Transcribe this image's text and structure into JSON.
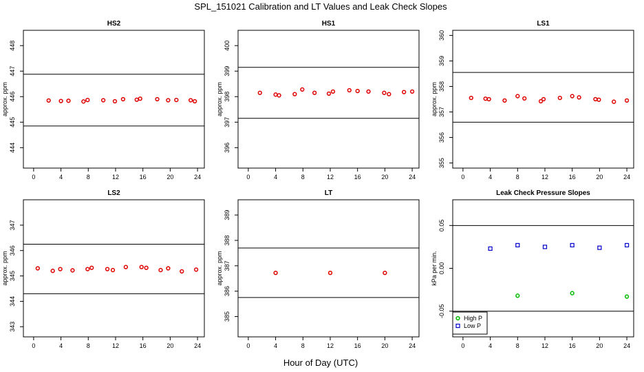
{
  "figure": {
    "title": "SPL_151021  Calibration and LT Values and Leak Check Slopes",
    "xlabel": "Hour of Day (UTC)"
  },
  "chart_data": [
    {
      "type": "scatter",
      "title": "HS2",
      "ylabel": "approx. ppm",
      "xlim": [
        -1.5,
        25
      ],
      "ylim": [
        443.2,
        448.6
      ],
      "x_ticks": [
        0,
        4,
        8,
        12,
        16,
        20,
        24
      ],
      "y_ticks": [
        444,
        445,
        446,
        447,
        448
      ],
      "hlines": [
        446.88,
        444.85
      ],
      "series": [
        {
          "marker": "circle",
          "color": "#e00000",
          "x": [
            2.2,
            4.0,
            5.1,
            7.3,
            7.9,
            10.2,
            11.9,
            13.1,
            15.1,
            15.6,
            18.1,
            19.7,
            20.9,
            23.0,
            23.6
          ],
          "y": [
            445.85,
            445.83,
            445.84,
            445.81,
            445.87,
            445.86,
            445.82,
            445.9,
            445.88,
            445.92,
            445.9,
            445.86,
            445.87,
            445.86,
            445.82
          ]
        }
      ]
    },
    {
      "type": "scatter",
      "title": "HS1",
      "ylabel": "approx. ppm",
      "xlim": [
        -1.5,
        25
      ],
      "ylim": [
        395.2,
        400.6
      ],
      "x_ticks": [
        0,
        4,
        8,
        12,
        16,
        20,
        24
      ],
      "y_ticks": [
        396,
        397,
        398,
        399,
        400
      ],
      "hlines": [
        399.15,
        397.15
      ],
      "series": [
        {
          "marker": "circle",
          "color": "#e00000",
          "x": [
            1.7,
            4.0,
            4.5,
            6.8,
            7.9,
            9.7,
            11.8,
            12.4,
            14.8,
            16.0,
            17.6,
            19.9,
            20.6,
            22.8,
            24.0
          ],
          "y": [
            398.15,
            398.08,
            398.05,
            398.1,
            398.28,
            398.15,
            398.12,
            398.2,
            398.25,
            398.22,
            398.2,
            398.15,
            398.1,
            398.18,
            398.2
          ]
        }
      ]
    },
    {
      "type": "scatter",
      "title": "LS1",
      "ylabel": "approx. ppm",
      "xlim": [
        -1.5,
        25
      ],
      "ylim": [
        354.8,
        360.2
      ],
      "x_ticks": [
        0,
        4,
        8,
        12,
        16,
        20,
        24
      ],
      "y_ticks": [
        355,
        356,
        357,
        358,
        359,
        360
      ],
      "hlines": [
        358.55,
        356.6
      ],
      "series": [
        {
          "marker": "circle",
          "color": "#e00000",
          "x": [
            1.2,
            3.3,
            3.8,
            6.1,
            8.0,
            9.0,
            11.4,
            11.8,
            14.2,
            16.0,
            17.0,
            19.4,
            19.9,
            22.1,
            24.0
          ],
          "y": [
            357.55,
            357.52,
            357.5,
            357.45,
            357.62,
            357.53,
            357.42,
            357.5,
            357.55,
            357.62,
            357.57,
            357.5,
            357.48,
            357.4,
            357.45
          ]
        }
      ]
    },
    {
      "type": "scatter",
      "title": "LS2",
      "ylabel": "approx. ppm",
      "xlim": [
        -1.5,
        25
      ],
      "ylim": [
        342.6,
        348
      ],
      "x_ticks": [
        0,
        4,
        8,
        12,
        16,
        20,
        24
      ],
      "y_ticks": [
        343,
        344,
        345,
        346,
        347
      ],
      "hlines": [
        346.25,
        344.3
      ],
      "series": [
        {
          "marker": "circle",
          "color": "#e00000",
          "x": [
            0.6,
            2.8,
            3.9,
            5.7,
            7.9,
            8.5,
            10.8,
            11.6,
            13.5,
            15.8,
            16.5,
            18.6,
            19.7,
            21.7,
            23.8
          ],
          "y": [
            345.3,
            345.2,
            345.27,
            345.22,
            345.27,
            345.32,
            345.27,
            345.23,
            345.35,
            345.35,
            345.32,
            345.23,
            345.3,
            345.18,
            345.25
          ]
        }
      ]
    },
    {
      "type": "scatter",
      "title": "LT",
      "ylabel": "approx. ppm",
      "xlim": [
        -1.5,
        25
      ],
      "ylim": [
        384.2,
        389.6
      ],
      "x_ticks": [
        0,
        4,
        8,
        12,
        16,
        20,
        24
      ],
      "y_ticks": [
        385,
        386,
        387,
        388,
        389
      ],
      "hlines": [
        387.7,
        385.75
      ],
      "series": [
        {
          "marker": "circle",
          "color": "#e00000",
          "x": [
            4.0,
            12.0,
            20.0
          ],
          "y": [
            386.72,
            386.72,
            386.72
          ]
        }
      ]
    },
    {
      "type": "scatter",
      "title": "Leak Check Pressure Slopes",
      "ylabel": "kPa per min.",
      "xlim": [
        -1.5,
        25
      ],
      "ylim": [
        -0.08,
        0.08
      ],
      "x_ticks": [
        0,
        4,
        8,
        12,
        16,
        20,
        24
      ],
      "y_ticks": [
        -0.05,
        0.0,
        0.05
      ],
      "y_tick_labels": [
        "-0.05",
        "0.00",
        "0.05"
      ],
      "hlines": [
        0.05,
        -0.05
      ],
      "legend": "bottom-left",
      "series": [
        {
          "name": "High P",
          "marker": "circle",
          "color": "#00bb00",
          "x": [
            8,
            16,
            24
          ],
          "y": [
            -0.032,
            -0.029,
            -0.033
          ]
        },
        {
          "name": "Low P",
          "marker": "square",
          "color": "#0000cc",
          "x": [
            4,
            8,
            12,
            16,
            20,
            24
          ],
          "y": [
            0.023,
            0.027,
            0.025,
            0.027,
            0.024,
            0.027
          ]
        }
      ]
    }
  ]
}
